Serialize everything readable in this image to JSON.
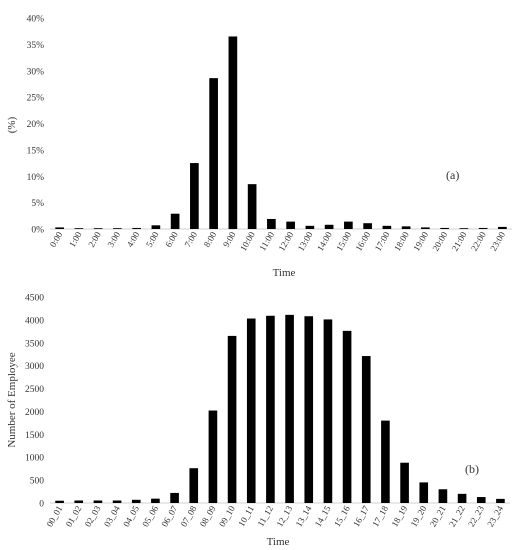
{
  "chart_data": [
    {
      "type": "bar",
      "panel_label": "(a)",
      "xlabel": "Time",
      "ylabel": "(%)",
      "ylim": [
        0,
        40
      ],
      "yticks": [
        "0%",
        "5%",
        "10%",
        "15%",
        "20%",
        "25%",
        "30%",
        "35%",
        "40%"
      ],
      "grid": false,
      "categories": [
        "0:00",
        "1:00",
        "2:00",
        "3:00",
        "4:00",
        "5:00",
        "6:00",
        "7:00",
        "8:00",
        "9:00",
        "10:00",
        "11:00",
        "12:00",
        "13:00",
        "14:00",
        "15:00",
        "16:00",
        "17:00",
        "18:00",
        "19:00",
        "20:00",
        "21:00",
        "22:00",
        "23:00"
      ],
      "values": [
        0.3,
        0.05,
        0.05,
        0.05,
        0.2,
        0.7,
        2.9,
        12.5,
        28.6,
        36.5,
        8.5,
        1.9,
        1.4,
        0.6,
        0.8,
        1.4,
        1.1,
        0.6,
        0.5,
        0.3,
        0.2,
        0.05,
        0.2,
        0.4
      ],
      "bar_color": "#000000"
    },
    {
      "type": "bar",
      "panel_label": "(b)",
      "xlabel": "Time",
      "ylabel": "Number of Employee",
      "ylim": [
        0,
        4500
      ],
      "yticks": [
        "0",
        "500",
        "1000",
        "1500",
        "2000",
        "2500",
        "3000",
        "3500",
        "4000",
        "4500"
      ],
      "grid": false,
      "categories": [
        "00_01",
        "01_02",
        "02_03",
        "03_04",
        "04_05",
        "05_06",
        "06_07",
        "07_08",
        "08_09",
        "09_10",
        "10_11",
        "11_12",
        "12_13",
        "13_14",
        "14_15",
        "15_16",
        "16_17",
        "17_18",
        "18_19",
        "19_20",
        "20_21",
        "21_22",
        "22_23",
        "23_24"
      ],
      "values": [
        50,
        55,
        55,
        55,
        70,
        95,
        220,
        760,
        2020,
        3650,
        4030,
        4090,
        4110,
        4080,
        4010,
        3760,
        3210,
        1800,
        880,
        450,
        300,
        200,
        130,
        90
      ],
      "bar_color": "#000000"
    }
  ]
}
